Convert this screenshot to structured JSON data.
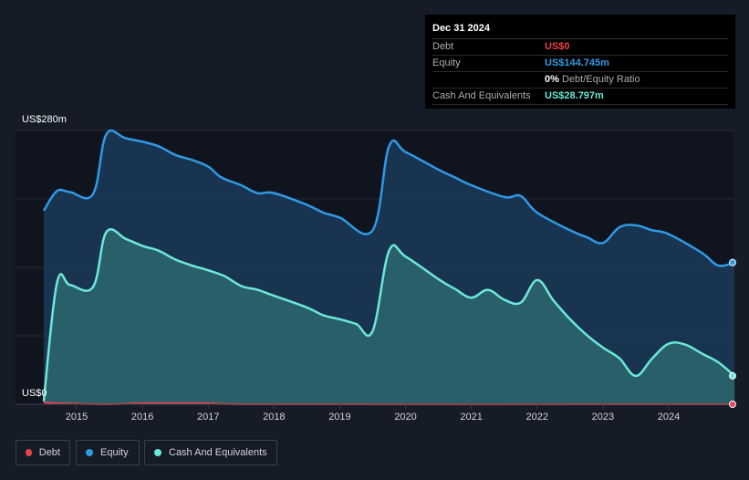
{
  "tooltip": {
    "date": "Dec 31 2024",
    "rows": [
      {
        "label": "Debt",
        "value": "US$0",
        "color": "#e8434c"
      },
      {
        "label": "Equity",
        "value": "US$144.745m",
        "color": "#2f9ae5"
      },
      {
        "label": "",
        "value": "0%",
        "suffix": "Debt/Equity Ratio",
        "color": "#ffffff"
      },
      {
        "label": "Cash And Equivalents",
        "value": "US$28.797m",
        "color": "#6de8d8"
      }
    ]
  },
  "y_axis": {
    "top_label": "US$280m",
    "bottom_label": "US$0"
  },
  "legend": [
    {
      "label": "Debt",
      "color": "#e8434c"
    },
    {
      "label": "Equity",
      "color": "#2f9ae5"
    },
    {
      "label": "Cash And Equivalents",
      "color": "#6de8d8"
    }
  ],
  "colors": {
    "debt": "#e8434c",
    "equity": "#2f9ae5",
    "cash": "#6de8d8"
  },
  "chart_data": {
    "type": "area",
    "x_ticks": [
      "2015",
      "2016",
      "2017",
      "2018",
      "2019",
      "2020",
      "2021",
      "2022",
      "2023",
      "2024"
    ],
    "ylim": [
      0,
      280
    ],
    "units": "US$m",
    "series": [
      {
        "name": "Equity",
        "points": [
          [
            2014.5,
            198
          ],
          [
            2014.7,
            218
          ],
          [
            2014.9,
            217
          ],
          [
            2015.25,
            215
          ],
          [
            2015.45,
            276
          ],
          [
            2015.75,
            272
          ],
          [
            2016.2,
            265
          ],
          [
            2016.5,
            255
          ],
          [
            2016.75,
            250
          ],
          [
            2017.0,
            243
          ],
          [
            2017.2,
            232
          ],
          [
            2017.5,
            224
          ],
          [
            2017.75,
            216
          ],
          [
            2018.0,
            216
          ],
          [
            2018.5,
            204
          ],
          [
            2018.75,
            196
          ],
          [
            2019.0,
            191
          ],
          [
            2019.5,
            178
          ],
          [
            2019.75,
            264
          ],
          [
            2020.0,
            258
          ],
          [
            2020.5,
            240
          ],
          [
            2020.75,
            232
          ],
          [
            2021.0,
            224
          ],
          [
            2021.5,
            212
          ],
          [
            2021.75,
            213
          ],
          [
            2022.0,
            196
          ],
          [
            2022.5,
            178
          ],
          [
            2022.75,
            171
          ],
          [
            2023.0,
            165
          ],
          [
            2023.25,
            181
          ],
          [
            2023.5,
            183
          ],
          [
            2023.75,
            178
          ],
          [
            2024.0,
            174
          ],
          [
            2024.5,
            155
          ],
          [
            2024.75,
            142
          ],
          [
            2025.0,
            145
          ]
        ]
      },
      {
        "name": "Cash And Equivalents",
        "points": [
          [
            2014.5,
            3
          ],
          [
            2014.7,
            124
          ],
          [
            2014.9,
            122
          ],
          [
            2015.25,
            120
          ],
          [
            2015.45,
            176
          ],
          [
            2015.75,
            169
          ],
          [
            2016.0,
            162
          ],
          [
            2016.25,
            157
          ],
          [
            2016.5,
            148
          ],
          [
            2016.75,
            142
          ],
          [
            2017.0,
            137
          ],
          [
            2017.25,
            131
          ],
          [
            2017.5,
            121
          ],
          [
            2017.75,
            117
          ],
          [
            2018.0,
            111
          ],
          [
            2018.5,
            99
          ],
          [
            2018.75,
            91
          ],
          [
            2019.0,
            87
          ],
          [
            2019.25,
            82
          ],
          [
            2019.5,
            75
          ],
          [
            2019.75,
            157
          ],
          [
            2020.0,
            151
          ],
          [
            2020.5,
            128
          ],
          [
            2020.75,
            118
          ],
          [
            2021.0,
            109
          ],
          [
            2021.25,
            117
          ],
          [
            2021.5,
            107
          ],
          [
            2021.75,
            104
          ],
          [
            2022.0,
            127
          ],
          [
            2022.25,
            106
          ],
          [
            2022.5,
            87
          ],
          [
            2022.75,
            71
          ],
          [
            2023.0,
            58
          ],
          [
            2023.25,
            47
          ],
          [
            2023.5,
            29
          ],
          [
            2023.75,
            47
          ],
          [
            2024.0,
            62
          ],
          [
            2024.25,
            61
          ],
          [
            2024.5,
            52
          ],
          [
            2024.75,
            43
          ],
          [
            2025.0,
            29
          ]
        ]
      },
      {
        "name": "Debt",
        "points": [
          [
            2014.5,
            2
          ],
          [
            2014.7,
            1
          ],
          [
            2015.5,
            0
          ],
          [
            2016.0,
            1
          ],
          [
            2017.0,
            1
          ],
          [
            2018.0,
            0
          ],
          [
            2025.0,
            0
          ]
        ]
      }
    ]
  }
}
